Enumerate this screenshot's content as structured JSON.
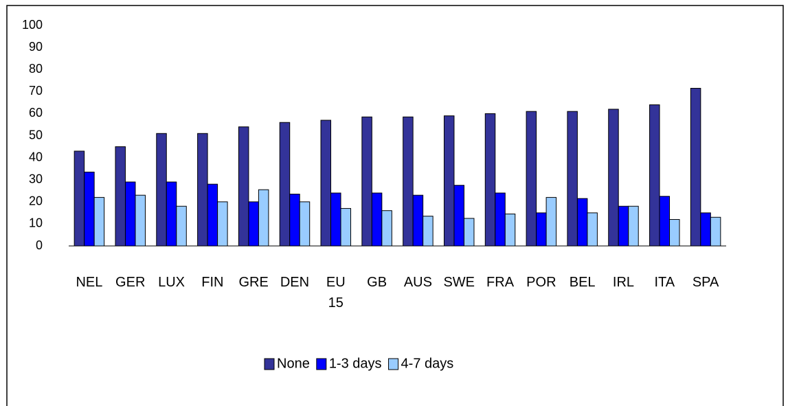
{
  "chart_data": {
    "type": "bar",
    "categories": [
      "NEL",
      "GER",
      "LUX",
      "FIN",
      "GRE",
      "DEN",
      "EU 15",
      "GB",
      "AUS",
      "SWE",
      "FRA",
      "POR",
      "BEL",
      "IRL",
      "ITA",
      "SPA"
    ],
    "series": [
      {
        "name": "None",
        "color": "#333399",
        "values": [
          43,
          45,
          51,
          51,
          54,
          56,
          57,
          58.5,
          58.5,
          59,
          60,
          61,
          61,
          62,
          64,
          71.5
        ]
      },
      {
        "name": "1-3 days",
        "color": "#0000ff",
        "values": [
          33.5,
          29,
          29,
          28,
          20,
          23.5,
          24,
          24,
          23,
          27.5,
          24,
          15,
          21.5,
          18,
          22.5,
          15
        ]
      },
      {
        "name": "4-7 days",
        "color": "#99ccff",
        "values": [
          22,
          23,
          18,
          20,
          25.5,
          20,
          17,
          16,
          13.5,
          12.5,
          14.5,
          22,
          15,
          18,
          12,
          13
        ]
      }
    ],
    "ylim": [
      0,
      100
    ],
    "yticks": [
      0,
      10,
      20,
      30,
      40,
      50,
      60,
      70,
      80,
      90,
      100
    ],
    "grid": false,
    "legend": "bottom"
  }
}
